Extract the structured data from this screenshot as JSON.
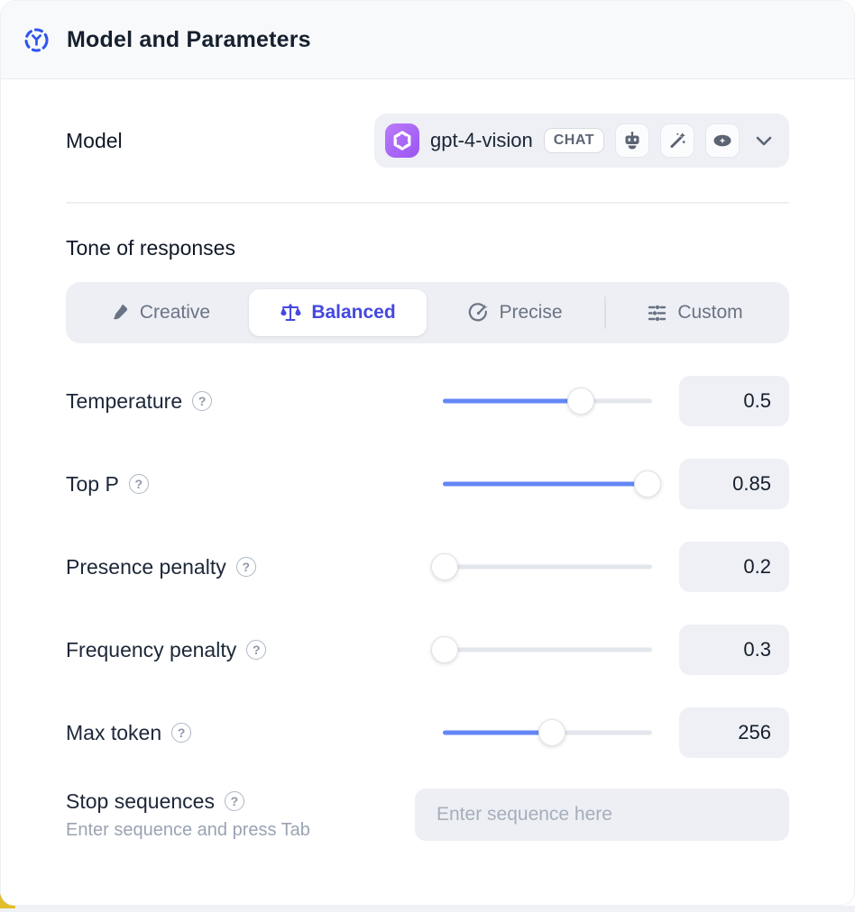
{
  "header": {
    "title": "Model and Parameters"
  },
  "model": {
    "label": "Model",
    "selected_name": "gpt-4-vision",
    "type_badge": "CHAT",
    "capability_icons": [
      "robot-icon",
      "magic-wand-icon",
      "vision-eye-icon"
    ],
    "provider_icon": "openai-logo"
  },
  "tone": {
    "title": "Tone of responses",
    "tabs": [
      {
        "label": "Creative",
        "icon": "paintbrush-icon",
        "selected": false
      },
      {
        "label": "Balanced",
        "icon": "balance-scale-icon",
        "selected": true
      },
      {
        "label": "Precise",
        "icon": "target-icon",
        "selected": false
      },
      {
        "label": "Custom",
        "icon": "sliders-icon",
        "selected": false
      }
    ]
  },
  "parameters": [
    {
      "label": "Temperature",
      "value": "0.5",
      "fill_pct": 66
    },
    {
      "label": "Top P",
      "value": "0.85",
      "fill_pct": 98
    },
    {
      "label": "Presence penalty",
      "value": "0.2",
      "fill_pct": 1
    },
    {
      "label": "Frequency penalty",
      "value": "0.3",
      "fill_pct": 1
    },
    {
      "label": "Max token",
      "value": "256",
      "fill_pct": 52
    }
  ],
  "stop_sequences": {
    "label": "Stop sequences",
    "hint": "Enter sequence and press Tab",
    "placeholder": "Enter sequence here"
  },
  "icons": {
    "help": "?"
  },
  "colors": {
    "accent_blue": "#4448df",
    "slider_blue": "#6487f6",
    "header_icon_blue": "#2f55ef",
    "provider_purple": "#9a55f3",
    "surface_gray": "#eef0f5"
  }
}
